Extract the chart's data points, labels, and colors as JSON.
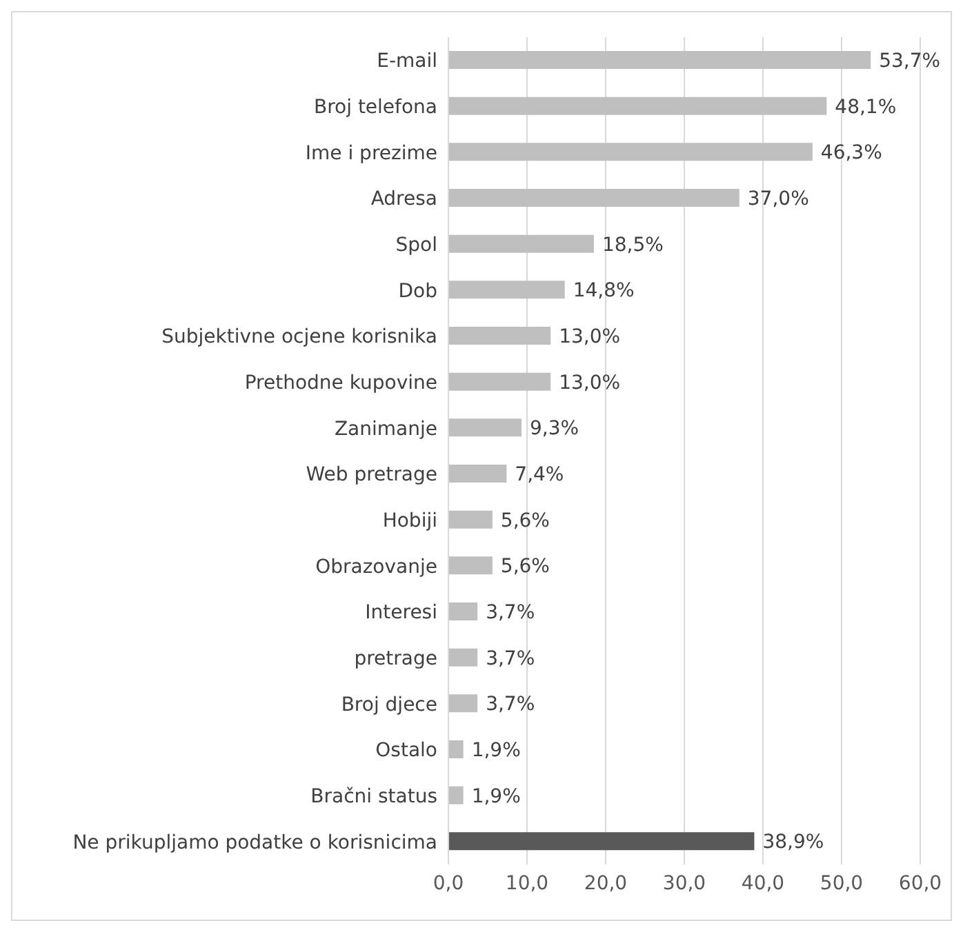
{
  "chart_data": {
    "type": "bar",
    "orientation": "horizontal",
    "categories": [
      "E-mail",
      "Broj telefona",
      "Ime i prezime",
      "Adresa",
      "Spol",
      "Dob",
      "Subjektivne ocjene korisnika",
      "Prethodne kupovine",
      "Zanimanje",
      "Web pretrage",
      "Hobiji",
      "Obrazovanje",
      "Interesi",
      "pretrage",
      "Broj djece",
      "Ostalo",
      "Bračni status",
      "Ne prikupljamo podatke o korisnicima"
    ],
    "values": [
      53.7,
      48.1,
      46.3,
      37.0,
      18.5,
      14.8,
      13.0,
      13.0,
      9.3,
      7.4,
      5.6,
      5.6,
      3.7,
      3.7,
      3.7,
      1.9,
      1.9,
      38.9
    ],
    "value_labels": [
      "53,7%",
      "48,1%",
      "46,3%",
      "37,0%",
      "18,5%",
      "14,8%",
      "13,0%",
      "13,0%",
      "9,3%",
      "7,4%",
      "5,6%",
      "5,6%",
      "3,7%",
      "3,7%",
      "3,7%",
      "1,9%",
      "1,9%",
      "38,9%"
    ],
    "colors": [
      "#bfbfbf",
      "#bfbfbf",
      "#bfbfbf",
      "#bfbfbf",
      "#bfbfbf",
      "#bfbfbf",
      "#bfbfbf",
      "#bfbfbf",
      "#bfbfbf",
      "#bfbfbf",
      "#bfbfbf",
      "#bfbfbf",
      "#bfbfbf",
      "#bfbfbf",
      "#bfbfbf",
      "#bfbfbf",
      "#bfbfbf",
      "#595959"
    ],
    "xlim": [
      0,
      60
    ],
    "xticks": [
      {
        "value": 0,
        "label": "0,0"
      },
      {
        "value": 10,
        "label": "10,0"
      },
      {
        "value": 20,
        "label": "20,0"
      },
      {
        "value": 30,
        "label": "30,0"
      },
      {
        "value": 40,
        "label": "40,0"
      },
      {
        "value": 50,
        "label": "50,0"
      },
      {
        "value": 60,
        "label": "60,0"
      }
    ],
    "grid": "x",
    "legend": false
  }
}
